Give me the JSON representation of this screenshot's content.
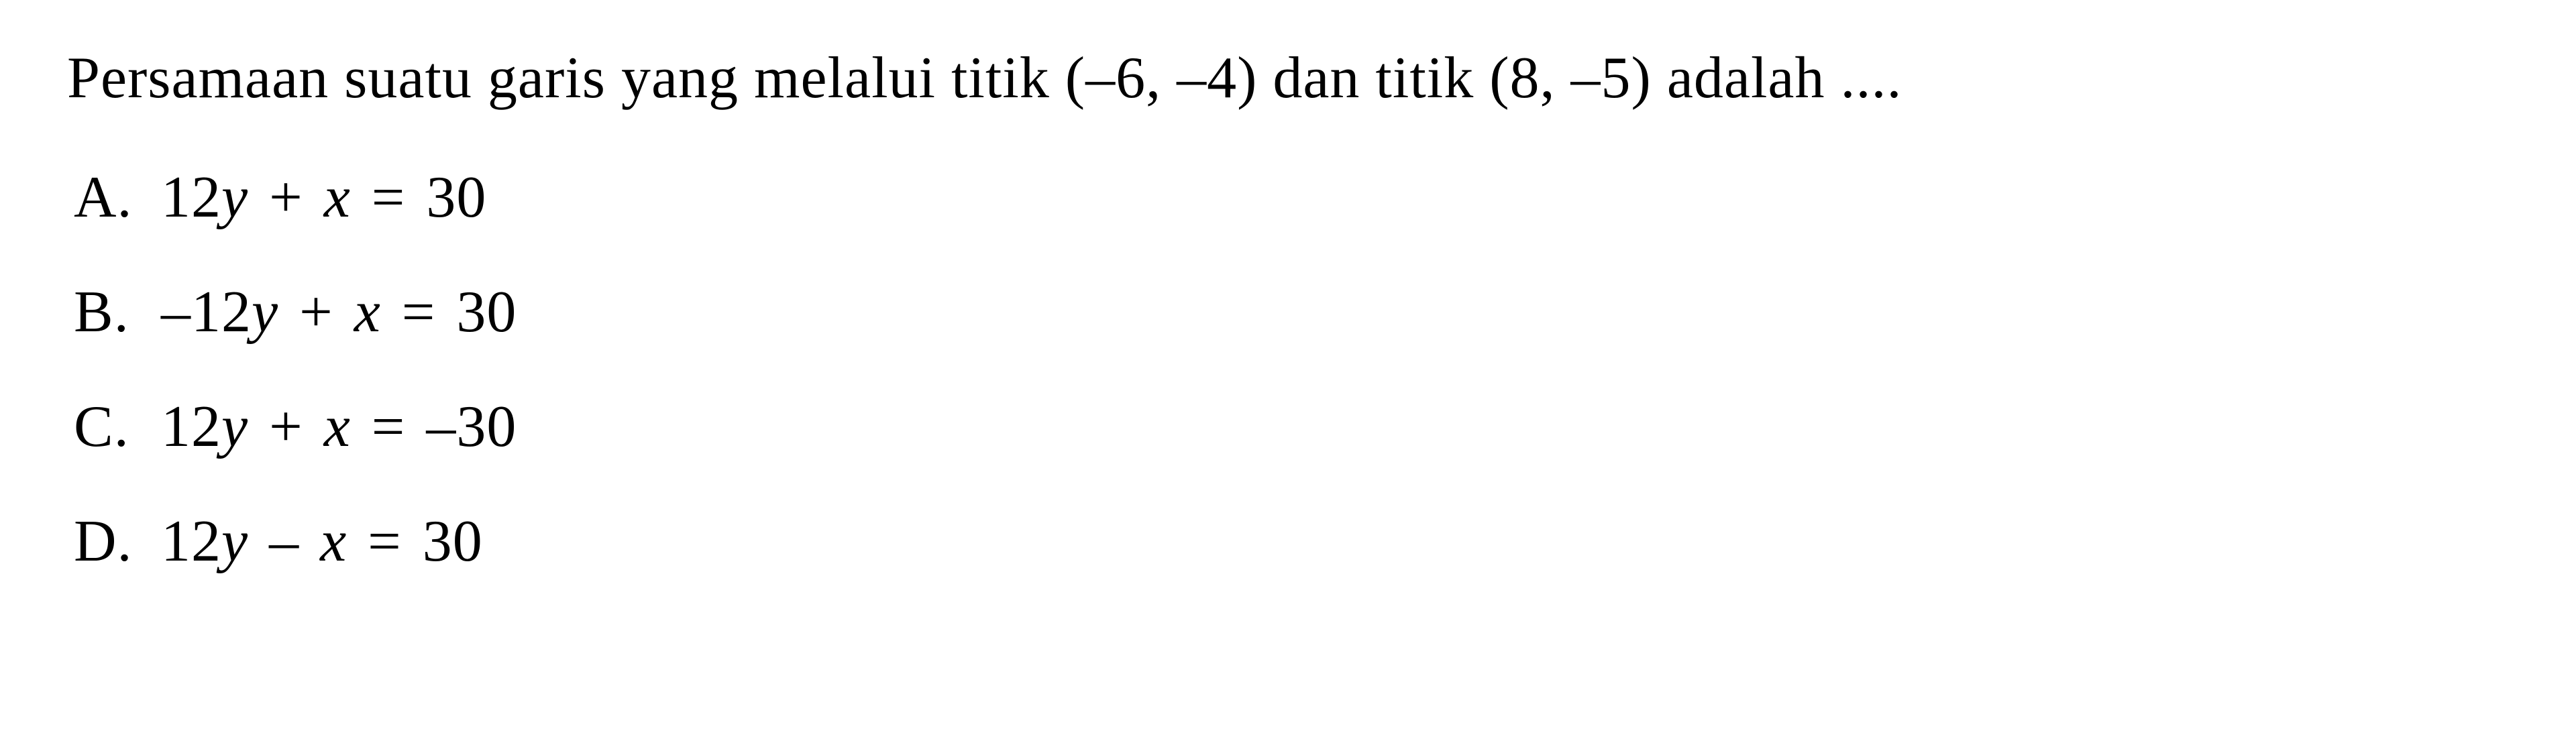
{
  "question": {
    "text": "Persamaan suatu garis yang melalui titik (–6, –4) dan titik (8, –5) adalah ....",
    "fontsize": 88,
    "color": "#000000"
  },
  "options": [
    {
      "label": "A.",
      "equation_parts": {
        "prefix": "12",
        "var1": "y",
        "op1": " + ",
        "var2": "x",
        "op2": " = ",
        "rhs": "30"
      }
    },
    {
      "label": "B.",
      "equation_parts": {
        "prefix": "–12",
        "var1": "y",
        "op1": " + ",
        "var2": "x",
        "op2": " = ",
        "rhs": "30"
      }
    },
    {
      "label": "C.",
      "equation_parts": {
        "prefix": "12",
        "var1": "y",
        "op1": " + ",
        "var2": "x",
        "op2": " = ",
        "rhs": "–30"
      }
    },
    {
      "label": "D.",
      "equation_parts": {
        "prefix": "12",
        "var1": "y",
        "op1": " – ",
        "var2": "x",
        "op2": " = ",
        "rhs": "30"
      }
    }
  ],
  "styling": {
    "background_color": "#ffffff",
    "text_color": "#000000",
    "font_family": "Times New Roman",
    "question_fontsize": 88,
    "option_fontsize": 88,
    "option_spacing": 70,
    "label_width": 130
  }
}
